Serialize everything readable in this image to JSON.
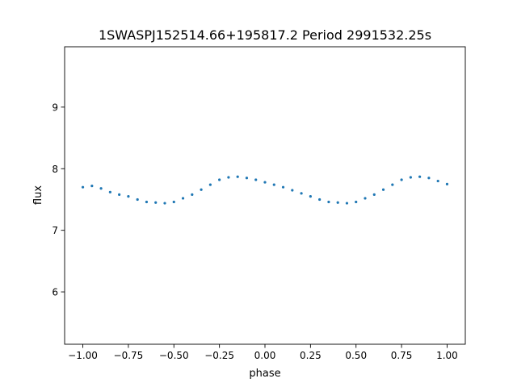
{
  "chart_data": {
    "type": "scatter",
    "title": "1SWASPJ152514.66+195817.2 Period 2991532.25s",
    "xlabel": "phase",
    "ylabel": "flux",
    "xlim": [
      -1.1,
      1.1
    ],
    "ylim": [
      5.15,
      9.98
    ],
    "xticks": [
      {
        "value": -1.0,
        "label": "−1.00"
      },
      {
        "value": -0.75,
        "label": "−0.75"
      },
      {
        "value": -0.5,
        "label": "−0.50"
      },
      {
        "value": -0.25,
        "label": "−0.25"
      },
      {
        "value": 0.0,
        "label": "0.00"
      },
      {
        "value": 0.25,
        "label": "0.25"
      },
      {
        "value": 0.5,
        "label": "0.50"
      },
      {
        "value": 0.75,
        "label": "0.75"
      },
      {
        "value": 1.0,
        "label": "1.00"
      }
    ],
    "yticks": [
      {
        "value": 6,
        "label": "6"
      },
      {
        "value": 7,
        "label": "7"
      },
      {
        "value": 8,
        "label": "8"
      },
      {
        "value": 9,
        "label": "9"
      }
    ],
    "grid": false,
    "point_color": "#1f77b4",
    "series": [
      {
        "points": [
          [
            -1.0,
            7.7
          ],
          [
            -0.95,
            7.72
          ],
          [
            -0.9,
            7.68
          ],
          [
            -0.85,
            7.62
          ],
          [
            -0.8,
            7.58
          ],
          [
            -0.75,
            7.55
          ],
          [
            -0.7,
            7.5
          ],
          [
            -0.65,
            7.46
          ],
          [
            -0.6,
            7.45
          ],
          [
            -0.55,
            7.44
          ],
          [
            -0.5,
            7.46
          ],
          [
            -0.45,
            7.52
          ],
          [
            -0.4,
            7.58
          ],
          [
            -0.35,
            7.66
          ],
          [
            -0.3,
            7.74
          ],
          [
            -0.25,
            7.82
          ],
          [
            -0.2,
            7.86
          ],
          [
            -0.15,
            7.87
          ],
          [
            -0.1,
            7.85
          ],
          [
            -0.05,
            7.82
          ],
          [
            0.0,
            7.78
          ],
          [
            0.05,
            7.74
          ],
          [
            0.1,
            7.7
          ],
          [
            0.15,
            7.65
          ],
          [
            0.2,
            7.6
          ],
          [
            0.25,
            7.55
          ],
          [
            0.3,
            7.5
          ],
          [
            0.35,
            7.46
          ],
          [
            0.4,
            7.45
          ],
          [
            0.45,
            7.44
          ],
          [
            0.5,
            7.46
          ],
          [
            0.55,
            7.52
          ],
          [
            0.6,
            7.58
          ],
          [
            0.65,
            7.66
          ],
          [
            0.7,
            7.74
          ],
          [
            0.75,
            7.82
          ],
          [
            0.8,
            7.86
          ],
          [
            0.85,
            7.87
          ],
          [
            0.9,
            7.85
          ],
          [
            0.95,
            7.8
          ],
          [
            1.0,
            7.75
          ]
        ]
      }
    ]
  }
}
